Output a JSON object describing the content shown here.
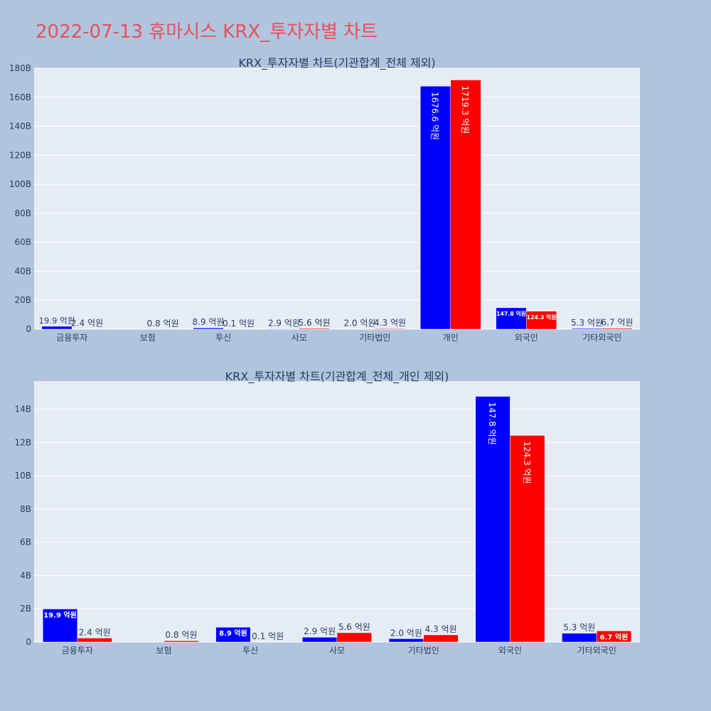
{
  "page": {
    "title": "2022-07-13 휴마시스 KRX_투자자별 차트",
    "background": "#b0c4de",
    "title_color": "#e8505b",
    "plot_background": "#e5ecf6"
  },
  "chart_data": [
    {
      "type": "bar",
      "title": "KRX_투자자별 차트(기관합계_전체 제외)",
      "categories": [
        "금융투자",
        "보험",
        "투신",
        "사모",
        "기타법인",
        "개인",
        "외국인",
        "기타외국인"
      ],
      "series": [
        {
          "color": "#0000ff",
          "values": [
            1.99,
            0,
            0.89,
            0.29,
            0.2,
            167.66,
            14.78,
            0.53
          ],
          "labels": [
            "19.9 억원",
            "",
            "8.9 억원",
            "2.9 억원",
            "2.0 억원",
            "1676.6 억원",
            "147.8 억원",
            "5.3 억원"
          ]
        },
        {
          "color": "#ff0000",
          "values": [
            0.24,
            0.08,
            0.01,
            0.56,
            0.43,
            171.93,
            12.43,
            0.67
          ],
          "labels": [
            "2.4 억원",
            "0.8 억원",
            "0.1 억원",
            "5.6 억원",
            "4.3 억원",
            "1719.3 억원",
            "124.3 억원",
            "6.7 억원"
          ]
        }
      ],
      "ylim": [
        0,
        180
      ],
      "yticks": [
        0,
        20,
        40,
        60,
        80,
        100,
        120,
        140,
        160,
        180
      ],
      "ytick_labels": [
        "0",
        "20B",
        "40B",
        "60B",
        "80B",
        "100B",
        "120B",
        "140B",
        "160B",
        "180B"
      ],
      "grid": true
    },
    {
      "type": "bar",
      "title": "KRX_투자자별 차트(기관합계_전체_개인 제외)",
      "categories": [
        "금융투자",
        "보험",
        "투신",
        "사모",
        "기타법인",
        "외국인",
        "기타외국인"
      ],
      "series": [
        {
          "color": "#0000ff",
          "values": [
            1.99,
            0,
            0.89,
            0.29,
            0.2,
            14.78,
            0.53
          ],
          "labels": [
            "19.9 억원",
            "",
            "8.9 억원",
            "2.9 억원",
            "2.0 억원",
            "147.8 억원",
            "5.3 억원"
          ]
        },
        {
          "color": "#ff0000",
          "values": [
            0.24,
            0.08,
            0.01,
            0.56,
            0.43,
            12.43,
            0.67
          ],
          "labels": [
            "2.4 억원",
            "0.8 억원",
            "0.1 억원",
            "5.6 억원",
            "4.3 억원",
            "124.3 억원",
            "6.7 억원"
          ]
        }
      ],
      "ylim": [
        0,
        15.7
      ],
      "yticks": [
        0,
        2,
        4,
        6,
        8,
        10,
        12,
        14
      ],
      "ytick_labels": [
        "0",
        "2B",
        "4B",
        "6B",
        "8B",
        "10B",
        "12B",
        "14B"
      ],
      "grid": true
    }
  ]
}
